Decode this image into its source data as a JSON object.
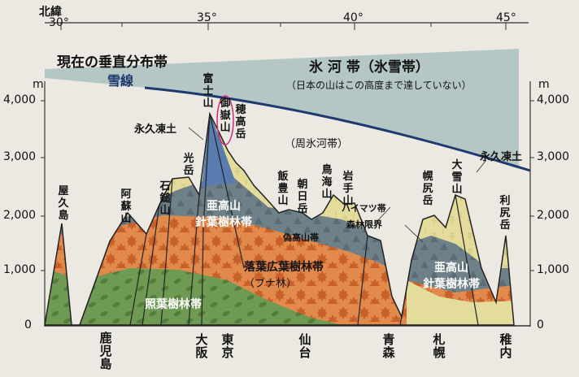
{
  "header": {
    "lat_title": "北緯",
    "lat_ticks": [
      "30°",
      "35°",
      "40°",
      "45°"
    ]
  },
  "title": "現在の垂直分布帯",
  "ice_zone": {
    "label": "氷 河 帯（氷雪帯）",
    "note": "（日本の山はこの高度まで達していない）"
  },
  "snow_line": "雪線",
  "unit": "m",
  "y_ticks_left": [
    "4,000",
    "3,000",
    "2,000",
    "1,000",
    "0"
  ],
  "y_ticks_right": [
    "4,000",
    "3,000",
    "2,000",
    "1,000",
    "0"
  ],
  "zones": {
    "permafrost_left": "永久凍土",
    "permafrost_right": "永久凍土",
    "periglacial": "（周氷河帯）",
    "subalpine_left": "亜高山\n針葉樹林帯",
    "subalpine_right": "亜高山\n針葉樹林帯",
    "pseudo_alpine": "偽高山帯",
    "haimatsu": "ハイマツ帯",
    "forest_limit": "森林限界",
    "deciduous": "落葉広葉樹林帯",
    "beech": "（ブナ林）",
    "evergreen": "照葉樹林帯"
  },
  "mountains": [
    "屋久島",
    "阿蘇山",
    "石鎚山",
    "光岳",
    "富士山",
    "御嶽山",
    "穂高岳",
    "飯豊山",
    "朝日岳",
    "鳥海山",
    "岩手山",
    "幌尻岳",
    "大雪山",
    "利尻岳"
  ],
  "cities": [
    "鹿児島",
    "大阪",
    "東京",
    "仙台",
    "青森",
    "札幌",
    "稚内"
  ],
  "colors": {
    "ice": "#b4c7c5",
    "snow_line": "#1e3a6e",
    "alpine": "#e3dc9a",
    "subalpine": "#6e8088",
    "deciduous": "#e28a4c",
    "evergreen": "#6f9a54",
    "fuji": "#5a7bb0",
    "highlight_ring": "#d4287a"
  }
}
